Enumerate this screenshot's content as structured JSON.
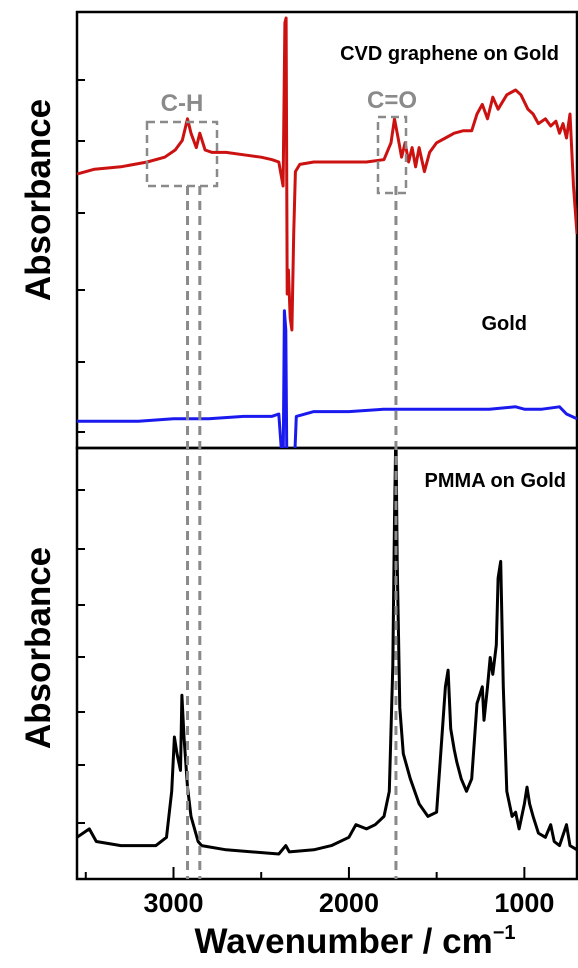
{
  "chart_data": {
    "type": "line",
    "shared_x": {
      "xlabel": "Wavenumber / cm",
      "xlabel_superscript": "−1",
      "xlim": [
        3550,
        700
      ],
      "x_reversed": true,
      "xticks": [
        3000,
        2000,
        1000
      ],
      "xtick_labels": [
        "3000",
        "2000",
        "1000"
      ]
    },
    "panels": [
      {
        "position": "top",
        "ylabel": "Absorbance",
        "yticks_labeled": false,
        "series": [
          {
            "label": "CVD graphene on Gold",
            "color": "#cc1111",
            "points": [
              [
                3550,
                0.35
              ],
              [
                3450,
                0.37
              ],
              [
                3300,
                0.38
              ],
              [
                3150,
                0.4
              ],
              [
                3050,
                0.42
              ],
              [
                2990,
                0.45
              ],
              [
                2950,
                0.49
              ],
              [
                2920,
                0.58
              ],
              [
                2900,
                0.52
              ],
              [
                2870,
                0.46
              ],
              [
                2850,
                0.52
              ],
              [
                2820,
                0.45
              ],
              [
                2780,
                0.44
              ],
              [
                2700,
                0.44
              ],
              [
                2600,
                0.43
              ],
              [
                2500,
                0.42
              ],
              [
                2440,
                0.41
              ],
              [
                2400,
                0.4
              ],
              [
                2375,
                0.3
              ],
              [
                2365,
                0.98
              ],
              [
                2358,
                1.0
              ],
              [
                2352,
                -0.15
              ],
              [
                2345,
                -0.05
              ],
              [
                2335,
                -0.25
              ],
              [
                2325,
                -0.3
              ],
              [
                2315,
                0.1
              ],
              [
                2305,
                0.36
              ],
              [
                2280,
                0.39
              ],
              [
                2200,
                0.4
              ],
              [
                2100,
                0.4
              ],
              [
                2000,
                0.4
              ],
              [
                1900,
                0.4
              ],
              [
                1800,
                0.41
              ],
              [
                1760,
                0.48
              ],
              [
                1740,
                0.58
              ],
              [
                1720,
                0.5
              ],
              [
                1700,
                0.42
              ],
              [
                1680,
                0.48
              ],
              [
                1660,
                0.4
              ],
              [
                1640,
                0.46
              ],
              [
                1620,
                0.38
              ],
              [
                1600,
                0.46
              ],
              [
                1570,
                0.36
              ],
              [
                1540,
                0.44
              ],
              [
                1500,
                0.48
              ],
              [
                1450,
                0.5
              ],
              [
                1400,
                0.52
              ],
              [
                1350,
                0.53
              ],
              [
                1300,
                0.53
              ],
              [
                1270,
                0.6
              ],
              [
                1240,
                0.64
              ],
              [
                1210,
                0.58
              ],
              [
                1180,
                0.67
              ],
              [
                1150,
                0.62
              ],
              [
                1100,
                0.68
              ],
              [
                1050,
                0.7
              ],
              [
                1020,
                0.68
              ],
              [
                980,
                0.62
              ],
              [
                950,
                0.6
              ],
              [
                920,
                0.56
              ],
              [
                880,
                0.58
              ],
              [
                850,
                0.55
              ],
              [
                820,
                0.57
              ],
              [
                800,
                0.52
              ],
              [
                780,
                0.56
              ],
              [
                760,
                0.5
              ],
              [
                740,
                0.6
              ],
              [
                720,
                0.3
              ],
              [
                700,
                0.1
              ]
            ]
          },
          {
            "label": "Gold",
            "color": "#1a1aee",
            "points": [
              [
                3550,
                -0.68
              ],
              [
                3400,
                -0.68
              ],
              [
                3200,
                -0.68
              ],
              [
                3000,
                -0.67
              ],
              [
                2800,
                -0.67
              ],
              [
                2600,
                -0.66
              ],
              [
                2440,
                -0.66
              ],
              [
                2400,
                -0.65
              ],
              [
                2375,
                -0.9
              ],
              [
                2368,
                -0.22
              ],
              [
                2360,
                -0.3
              ],
              [
                2352,
                -1.05
              ],
              [
                2340,
                -0.95
              ],
              [
                2330,
                -1.15
              ],
              [
                2320,
                -1.1
              ],
              [
                2310,
                -0.85
              ],
              [
                2300,
                -0.66
              ],
              [
                2200,
                -0.64
              ],
              [
                2000,
                -0.64
              ],
              [
                1800,
                -0.63
              ],
              [
                1600,
                -0.63
              ],
              [
                1400,
                -0.63
              ],
              [
                1200,
                -0.63
              ],
              [
                1050,
                -0.62
              ],
              [
                1000,
                -0.63
              ],
              [
                900,
                -0.63
              ],
              [
                800,
                -0.62
              ],
              [
                760,
                -0.65
              ],
              [
                700,
                -0.67
              ]
            ]
          }
        ],
        "annotations": [
          {
            "text": "CVD graphene on Gold",
            "near": "top-right"
          },
          {
            "text": "Gold",
            "near": "blue trace, right"
          },
          {
            "text": "C-H",
            "x_range": [
              3020,
              2740
            ]
          },
          {
            "text": "C=O",
            "x_range": [
              1770,
              1680
            ]
          }
        ]
      },
      {
        "position": "bottom",
        "ylabel": "Absorbance",
        "yticks_labeled": false,
        "series": [
          {
            "label": "PMMA on Gold",
            "color": "#000000",
            "points": [
              [
                3550,
                0.04
              ],
              [
                3480,
                0.06
              ],
              [
                3440,
                0.03
              ],
              [
                3300,
                0.02
              ],
              [
                3100,
                0.02
              ],
              [
                3040,
                0.04
              ],
              [
                3010,
                0.15
              ],
              [
                2995,
                0.28
              ],
              [
                2980,
                0.24
              ],
              [
                2960,
                0.2
              ],
              [
                2952,
                0.38
              ],
              [
                2940,
                0.28
              ],
              [
                2920,
                0.16
              ],
              [
                2900,
                0.09
              ],
              [
                2860,
                0.03
              ],
              [
                2840,
                0.02
              ],
              [
                2700,
                0.01
              ],
              [
                2400,
                0.0
              ],
              [
                2360,
                0.02
              ],
              [
                2340,
                0.005
              ],
              [
                2200,
                0.01
              ],
              [
                2100,
                0.02
              ],
              [
                2000,
                0.04
              ],
              [
                1960,
                0.07
              ],
              [
                1900,
                0.06
              ],
              [
                1850,
                0.07
              ],
              [
                1800,
                0.09
              ],
              [
                1770,
                0.15
              ],
              [
                1750,
                0.45
              ],
              [
                1740,
                0.8
              ],
              [
                1732,
                1.02
              ],
              [
                1725,
                0.7
              ],
              [
                1710,
                0.35
              ],
              [
                1690,
                0.24
              ],
              [
                1650,
                0.18
              ],
              [
                1600,
                0.12
              ],
              [
                1550,
                0.09
              ],
              [
                1500,
                0.1
              ],
              [
                1470,
                0.28
              ],
              [
                1450,
                0.4
              ],
              [
                1435,
                0.44
              ],
              [
                1420,
                0.3
              ],
              [
                1400,
                0.25
              ],
              [
                1385,
                0.22
              ],
              [
                1360,
                0.18
              ],
              [
                1330,
                0.15
              ],
              [
                1300,
                0.18
              ],
              [
                1270,
                0.36
              ],
              [
                1240,
                0.4
              ],
              [
                1230,
                0.32
              ],
              [
                1210,
                0.4
              ],
              [
                1195,
                0.47
              ],
              [
                1180,
                0.43
              ],
              [
                1160,
                0.5
              ],
              [
                1150,
                0.66
              ],
              [
                1135,
                0.7
              ],
              [
                1120,
                0.4
              ],
              [
                1100,
                0.15
              ],
              [
                1070,
                0.09
              ],
              [
                1050,
                0.1
              ],
              [
                1030,
                0.06
              ],
              [
                1000,
                0.12
              ],
              [
                985,
                0.16
              ],
              [
                970,
                0.12
              ],
              [
                950,
                0.09
              ],
              [
                920,
                0.05
              ],
              [
                880,
                0.04
              ],
              [
                850,
                0.07
              ],
              [
                830,
                0.03
              ],
              [
                800,
                0.02
              ],
              [
                760,
                0.07
              ],
              [
                740,
                0.02
              ],
              [
                700,
                0.01
              ]
            ]
          }
        ],
        "annotations": [
          {
            "text": "PMMA on Gold",
            "near": "top-right"
          }
        ]
      }
    ],
    "guide_lines": {
      "style": "grey dashed vertical",
      "x": [
        2920,
        2850,
        1732
      ]
    }
  }
}
